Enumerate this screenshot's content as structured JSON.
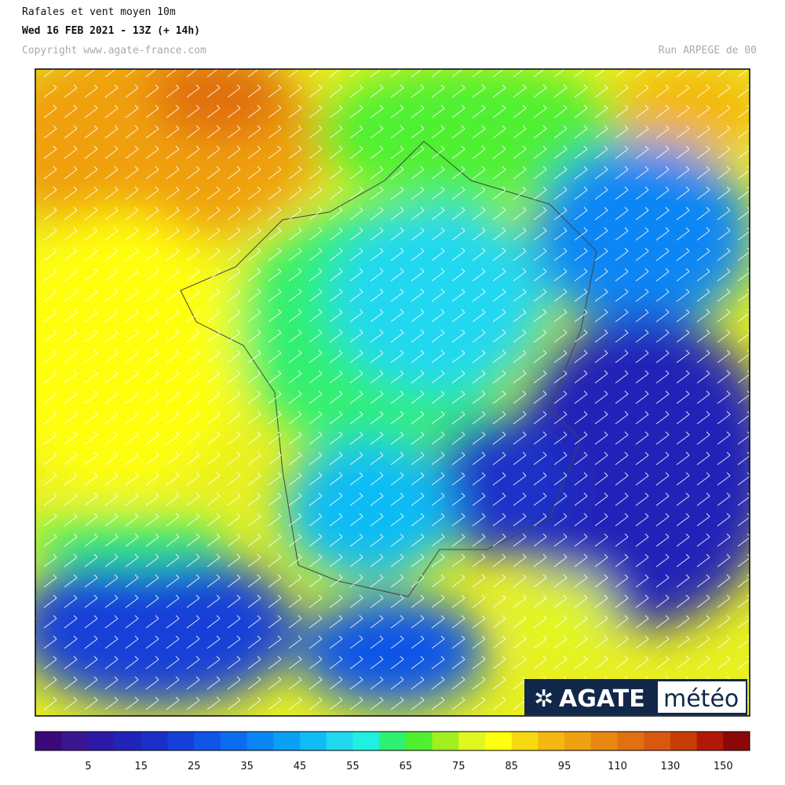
{
  "header": {
    "title": "Rafales et vent moyen 10m",
    "subtitle": "Wed 16 FEB 2021 - 13Z (+ 14h)",
    "copyright": "Copyright www.agate-france.com",
    "run": "Run ARPEGE de 00"
  },
  "logo": {
    "brand": "AGATE",
    "suffix": "météo"
  },
  "colorbar": {
    "colors": [
      "#3c0a78",
      "#3a1590",
      "#2d1aa8",
      "#2024b8",
      "#1a30c8",
      "#1440d8",
      "#1055e8",
      "#0c6cf0",
      "#0a86f5",
      "#0aa0f5",
      "#10bcf5",
      "#20d8f0",
      "#20f0e0",
      "#30f070",
      "#50f030",
      "#a0f020",
      "#e0f820",
      "#ffff10",
      "#f8d810",
      "#f4b810",
      "#f0a010",
      "#e88810",
      "#e07010",
      "#d85810",
      "#c83c08",
      "#b01808",
      "#8c0808"
    ],
    "labels": [
      "5",
      "15",
      "25",
      "35",
      "45",
      "55",
      "65",
      "75",
      "85",
      "95",
      "110",
      "130",
      "150"
    ]
  }
}
